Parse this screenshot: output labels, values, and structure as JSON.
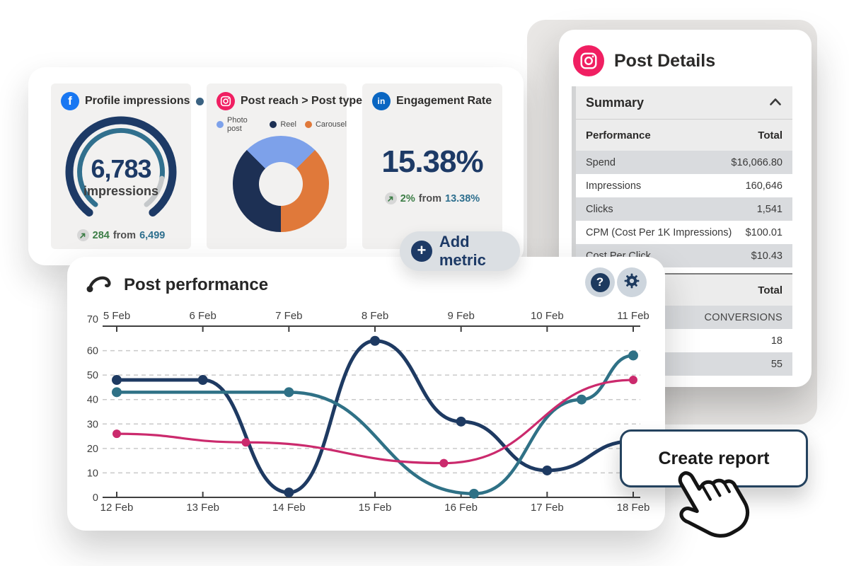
{
  "panel": {
    "profile_card": {
      "title": "Profile impressions",
      "value": "6,783",
      "unit": "impressions",
      "delta_value": "284",
      "delta_connector": "from",
      "delta_baseline": "6,499",
      "chart_data": {
        "type": "gauge",
        "value": 6783,
        "label": "impressions",
        "fill_pct": 85,
        "track_color": "#1d3a66",
        "progress_color": "#31708e",
        "remainder_color": "#c5c8ca"
      }
    },
    "reach_card": {
      "title": "Post reach > Post type",
      "legend_order": [
        "Photo post",
        "Reel",
        "Carousel"
      ],
      "chart_data": {
        "type": "pie",
        "donut": true,
        "start_deg": -45,
        "draw_order": [
          "Photo post",
          "Carousel",
          "Reel"
        ],
        "segments": {
          "Photo post": {
            "pct": 25,
            "color": "#7da1ea"
          },
          "Reel": {
            "pct": 37.5,
            "color": "#1d3054"
          },
          "Carousel": {
            "pct": 37.5,
            "color": "#e0793a"
          }
        }
      }
    },
    "engagement_card": {
      "title": "Engagement Rate",
      "value": "15.38%",
      "delta_value": "2%",
      "delta_connector": "from",
      "delta_baseline": "13.38%"
    }
  },
  "add_metric": {
    "label": "Add metric"
  },
  "post_details": {
    "title": "Post Details",
    "summary": {
      "header": "Summary",
      "performance_table": {
        "col_label": "Performance",
        "col_total": "Total",
        "rows": [
          {
            "label": "Spend",
            "value": "$16,066.80"
          },
          {
            "label": "Impressions",
            "value": "160,646"
          },
          {
            "label": "Clicks",
            "value": "1,541"
          },
          {
            "label": "CPM (Cost Per 1K Impressions)",
            "value": "$100.01"
          },
          {
            "label": "Cost Per Click",
            "value": "$10.43"
          }
        ]
      },
      "conversions_table": {
        "col_total": "Total",
        "rows": [
          "CONVERSIONS",
          "18",
          "55"
        ]
      }
    }
  },
  "post_performance": {
    "title": "Post performance",
    "chart_data": {
      "type": "line",
      "x_axis_top": [
        "5 Feb",
        "6 Feb",
        "7 Feb",
        "8 Feb",
        "9 Feb",
        "10 Feb",
        "11 Feb"
      ],
      "x_axis_bottom": [
        "12 Feb",
        "13 Feb",
        "14 Feb",
        "15 Feb",
        "16 Feb",
        "17 Feb",
        "18 Feb"
      ],
      "ylim": [
        0,
        70
      ],
      "yticks": [
        0,
        10,
        20,
        30,
        40,
        50,
        60,
        70
      ],
      "grid": "dashed horizontal",
      "series": [
        {
          "name": "series-navy",
          "color": "#1e3a62",
          "width": 5,
          "marker_r": 7,
          "points": [
            [
              0,
              48
            ],
            [
              1,
              48
            ],
            [
              2,
              2
            ],
            [
              3,
              64
            ],
            [
              4,
              31
            ],
            [
              5,
              11
            ],
            [
              6,
              23
            ]
          ],
          "markers": [
            [
              0,
              48
            ],
            [
              1,
              48
            ],
            [
              2,
              2
            ],
            [
              3,
              64
            ],
            [
              4,
              31
            ],
            [
              5,
              11
            ]
          ]
        },
        {
          "name": "series-teal",
          "color": "#2f7186",
          "width": 4.5,
          "marker_r": 7,
          "points": [
            [
              0,
              43
            ],
            [
              2,
              43
            ],
            [
              4.15,
              1.5
            ],
            [
              5.4,
              40
            ],
            [
              6,
              58
            ]
          ],
          "markers": [
            [
              0,
              43
            ],
            [
              2,
              43
            ],
            [
              4.15,
              1.5
            ],
            [
              5.4,
              40
            ],
            [
              6,
              58
            ]
          ]
        },
        {
          "name": "series-pink",
          "color": "#cb2a6d",
          "width": 3.2,
          "marker_r": 6,
          "points": [
            [
              0,
              26
            ],
            [
              1.5,
              22.5
            ],
            [
              3.8,
              14
            ],
            [
              6,
              48
            ]
          ],
          "markers": [
            [
              0,
              26
            ],
            [
              1.5,
              22.5
            ],
            [
              3.8,
              14
            ],
            [
              6,
              48
            ]
          ]
        }
      ]
    }
  },
  "create_report": {
    "label": "Create report"
  }
}
